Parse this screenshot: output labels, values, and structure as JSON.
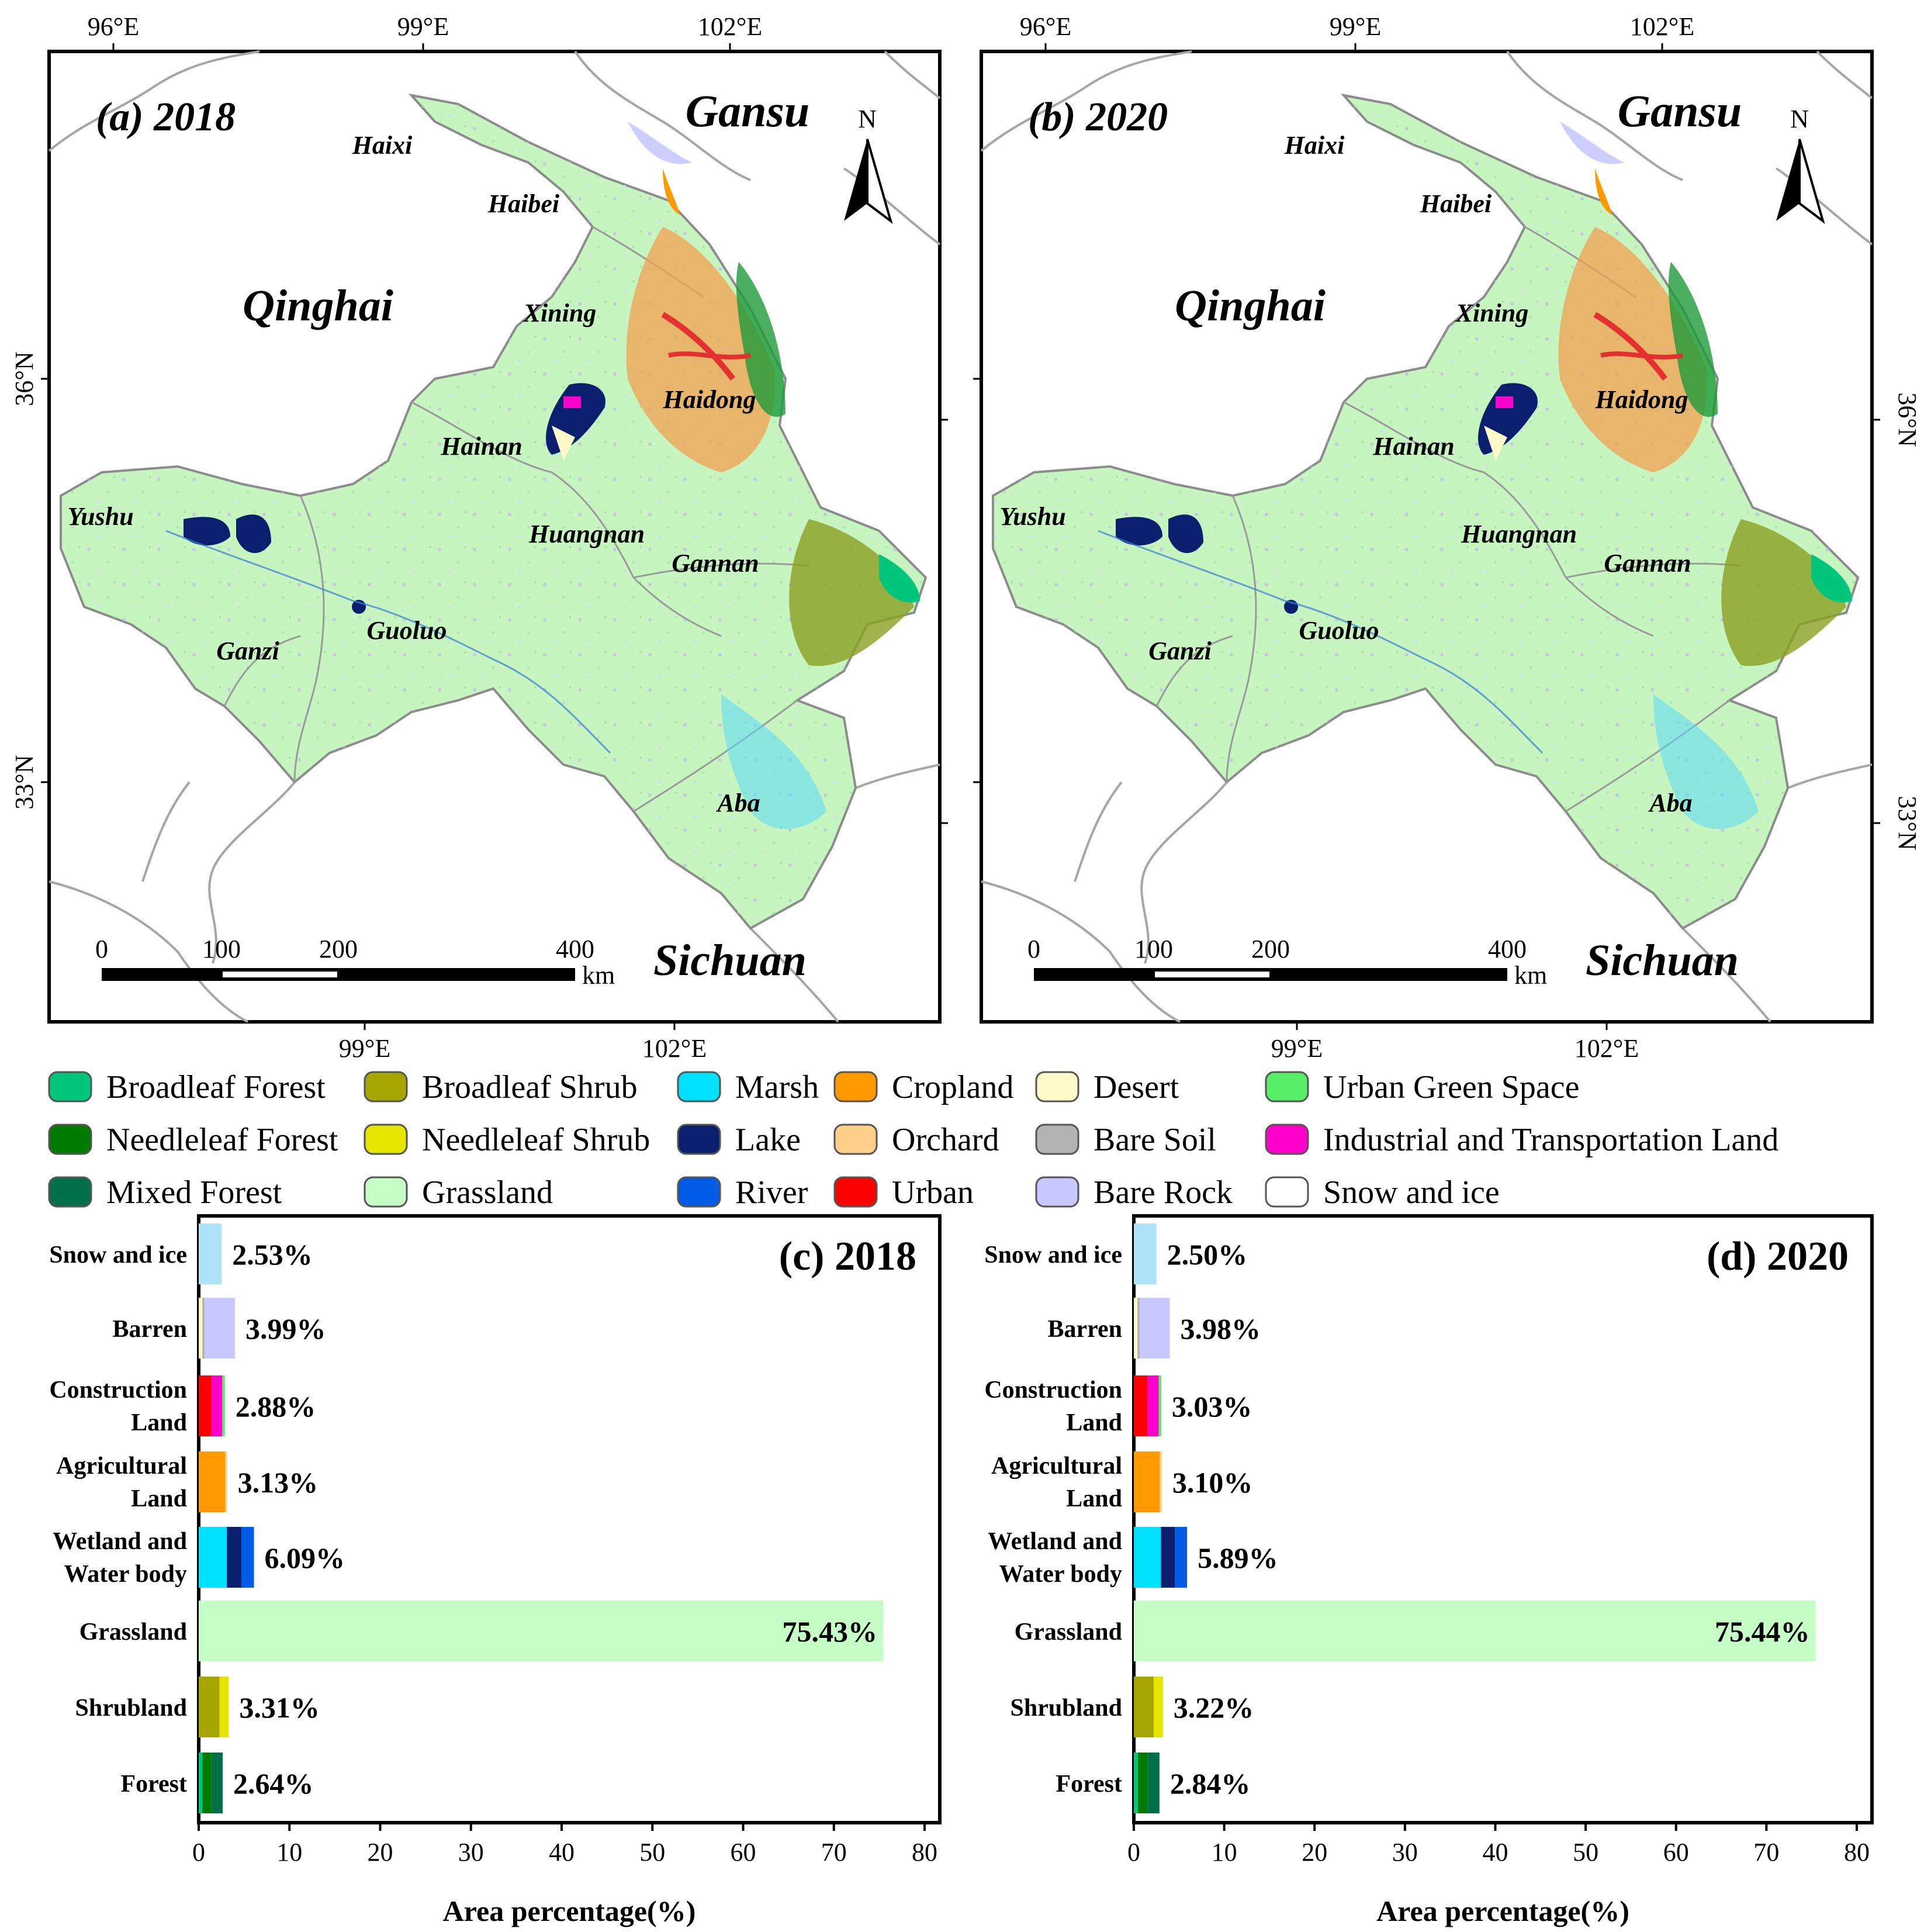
{
  "maps": [
    {
      "panel": "(a) 2018",
      "top_ticks": [
        "96°E",
        "99°E",
        "102°E"
      ],
      "bottom_ticks": [
        "99°E",
        "102°E"
      ],
      "left_ticks": [
        "36°N",
        "33°N"
      ],
      "right_ticks": [],
      "places": [
        "Gansu",
        "Qinghai",
        "Sichuan",
        "Haixi",
        "Haibei",
        "Xining",
        "Haidong",
        "Hainan",
        "Yushu",
        "Huangnan",
        "Gannan",
        "Ganzi",
        "Guoluo",
        "Aba"
      ],
      "north": "N",
      "scale_labels": [
        "0",
        "100",
        "200",
        "400"
      ],
      "scale_unit": "km"
    },
    {
      "panel": "(b) 2020",
      "top_ticks": [
        "96°E",
        "99°E",
        "102°E"
      ],
      "bottom_ticks": [
        "99°E",
        "102°E"
      ],
      "left_ticks": [],
      "right_ticks": [
        "36°N",
        "33°N"
      ],
      "places": [
        "Gansu",
        "Qinghai",
        "Sichuan",
        "Haixi",
        "Haibei",
        "Xining",
        "Haidong",
        "Hainan",
        "Yushu",
        "Huangnan",
        "Gannan",
        "Ganzi",
        "Guoluo",
        "Aba"
      ],
      "north": "N",
      "scale_labels": [
        "0",
        "100",
        "200",
        "400"
      ],
      "scale_unit": "km"
    }
  ],
  "legend": [
    {
      "label": "Broadleaf Forest",
      "color": "#00c57a"
    },
    {
      "label": "Needleleaf Forest",
      "color": "#007a00"
    },
    {
      "label": "Mixed Forest",
      "color": "#00704a"
    },
    {
      "label": "Broadleaf Shrub",
      "color": "#a6a600"
    },
    {
      "label": "Needleleaf Shrub",
      "color": "#e5e500"
    },
    {
      "label": "Grassland",
      "color": "#c6ffc6"
    },
    {
      "label": "Marsh",
      "color": "#00e0ff"
    },
    {
      "label": "Lake",
      "color": "#0a1f6e"
    },
    {
      "label": "River",
      "color": "#005ce6"
    },
    {
      "label": "Cropland",
      "color": "#ff9900"
    },
    {
      "label": "Orchard",
      "color": "#ffd08a"
    },
    {
      "label": "Urban",
      "color": "#ff0000"
    },
    {
      "label": "Desert",
      "color": "#fffac8"
    },
    {
      "label": "Bare Soil",
      "color": "#b3b3b3"
    },
    {
      "label": "Bare Rock",
      "color": "#c8c8ff"
    },
    {
      "label": "Urban Green Space",
      "color": "#55ee66"
    },
    {
      "label": "Industrial and Transportation Land",
      "color": "#ff00cc"
    },
    {
      "label": "Snow and ice",
      "color": "#ffffff"
    }
  ],
  "chart_data": [
    {
      "type": "bar",
      "orientation": "horizontal",
      "stacked": true,
      "title": "(c) 2018",
      "xlabel": "Area percentage(%)",
      "xlim": [
        0,
        80
      ],
      "xticks": [
        "0",
        "10",
        "20",
        "30",
        "40",
        "50",
        "60",
        "70",
        "80"
      ],
      "categories": [
        {
          "lines": [
            "Snow and ice"
          ],
          "total_label": "2.53%",
          "segments": [
            {
              "class": "Snow and ice",
              "value": 2.53,
              "color": "#aee4f8"
            }
          ]
        },
        {
          "lines": [
            "Barren"
          ],
          "total_label": "3.99%",
          "segments": [
            {
              "class": "Desert",
              "value": 0.4,
              "color": "#fffac8"
            },
            {
              "class": "Bare Soil",
              "value": 0.25,
              "color": "#b3b3b3"
            },
            {
              "class": "Bare Rock",
              "value": 3.34,
              "color": "#c8c8ff"
            }
          ]
        },
        {
          "lines": [
            "Construction",
            "Land"
          ],
          "total_label": "2.88%",
          "segments": [
            {
              "class": "Urban",
              "value": 1.4,
              "color": "#ff0000"
            },
            {
              "class": "Industrial and Transportation Land",
              "value": 1.2,
              "color": "#ff00cc"
            },
            {
              "class": "Urban Green Space",
              "value": 0.28,
              "color": "#55ee66"
            }
          ]
        },
        {
          "lines": [
            "Agricultural",
            "Land"
          ],
          "total_label": "3.13%",
          "segments": [
            {
              "class": "Cropland",
              "value": 2.9,
              "color": "#ff9900"
            },
            {
              "class": "Orchard",
              "value": 0.23,
              "color": "#ffd08a"
            }
          ]
        },
        {
          "lines": [
            "Wetland and",
            "Water body"
          ],
          "total_label": "6.09%",
          "segments": [
            {
              "class": "Marsh",
              "value": 3.1,
              "color": "#00e0ff"
            },
            {
              "class": "Lake",
              "value": 1.6,
              "color": "#0a1f6e"
            },
            {
              "class": "River",
              "value": 1.39,
              "color": "#005ce6"
            }
          ]
        },
        {
          "lines": [
            "Grassland"
          ],
          "total_label": "75.43%",
          "segments": [
            {
              "class": "Grassland",
              "value": 75.43,
              "color": "#c6ffc6"
            }
          ]
        },
        {
          "lines": [
            "Shrubland"
          ],
          "total_label": "3.31%",
          "segments": [
            {
              "class": "Broadleaf Shrub",
              "value": 2.3,
              "color": "#a6a600"
            },
            {
              "class": "Needleleaf Shrub",
              "value": 1.01,
              "color": "#e5e500"
            }
          ]
        },
        {
          "lines": [
            "Forest"
          ],
          "total_label": "2.64%",
          "segments": [
            {
              "class": "Broadleaf Forest",
              "value": 0.4,
              "color": "#00c57a"
            },
            {
              "class": "Needleleaf Forest",
              "value": 1.0,
              "color": "#007a00"
            },
            {
              "class": "Mixed Forest",
              "value": 1.24,
              "color": "#00704a"
            }
          ]
        }
      ]
    },
    {
      "type": "bar",
      "orientation": "horizontal",
      "stacked": true,
      "title": "(d) 2020",
      "xlabel": "Area percentage(%)",
      "xlim": [
        0,
        80
      ],
      "xticks": [
        "0",
        "10",
        "20",
        "30",
        "40",
        "50",
        "60",
        "70",
        "80"
      ],
      "categories": [
        {
          "lines": [
            "Snow and ice"
          ],
          "total_label": "2.50%",
          "segments": [
            {
              "class": "Snow and ice",
              "value": 2.5,
              "color": "#aee4f8"
            }
          ]
        },
        {
          "lines": [
            "Barren"
          ],
          "total_label": "3.98%",
          "segments": [
            {
              "class": "Desert",
              "value": 0.4,
              "color": "#fffac8"
            },
            {
              "class": "Bare Soil",
              "value": 0.25,
              "color": "#b3b3b3"
            },
            {
              "class": "Bare Rock",
              "value": 3.33,
              "color": "#c8c8ff"
            }
          ]
        },
        {
          "lines": [
            "Construction",
            "Land"
          ],
          "total_label": "3.03%",
          "segments": [
            {
              "class": "Urban",
              "value": 1.5,
              "color": "#ff0000"
            },
            {
              "class": "Industrial and Transportation Land",
              "value": 1.25,
              "color": "#ff00cc"
            },
            {
              "class": "Urban Green Space",
              "value": 0.28,
              "color": "#55ee66"
            }
          ]
        },
        {
          "lines": [
            "Agricultural",
            "Land"
          ],
          "total_label": "3.10%",
          "segments": [
            {
              "class": "Cropland",
              "value": 2.87,
              "color": "#ff9900"
            },
            {
              "class": "Orchard",
              "value": 0.23,
              "color": "#ffd08a"
            }
          ]
        },
        {
          "lines": [
            "Wetland and",
            "Water body"
          ],
          "total_label": "5.89%",
          "segments": [
            {
              "class": "Marsh",
              "value": 3.0,
              "color": "#00e0ff"
            },
            {
              "class": "Lake",
              "value": 1.55,
              "color": "#0a1f6e"
            },
            {
              "class": "River",
              "value": 1.34,
              "color": "#005ce6"
            }
          ]
        },
        {
          "lines": [
            "Grassland"
          ],
          "total_label": "75.44%",
          "segments": [
            {
              "class": "Grassland",
              "value": 75.44,
              "color": "#c6ffc6"
            }
          ]
        },
        {
          "lines": [
            "Shrubland"
          ],
          "total_label": "3.22%",
          "segments": [
            {
              "class": "Broadleaf Shrub",
              "value": 2.2,
              "color": "#a6a600"
            },
            {
              "class": "Needleleaf Shrub",
              "value": 1.02,
              "color": "#e5e500"
            }
          ]
        },
        {
          "lines": [
            "Forest"
          ],
          "total_label": "2.84%",
          "segments": [
            {
              "class": "Broadleaf Forest",
              "value": 0.44,
              "color": "#00c57a"
            },
            {
              "class": "Needleleaf Forest",
              "value": 1.1,
              "color": "#007a00"
            },
            {
              "class": "Mixed Forest",
              "value": 1.3,
              "color": "#00704a"
            }
          ]
        }
      ]
    }
  ]
}
